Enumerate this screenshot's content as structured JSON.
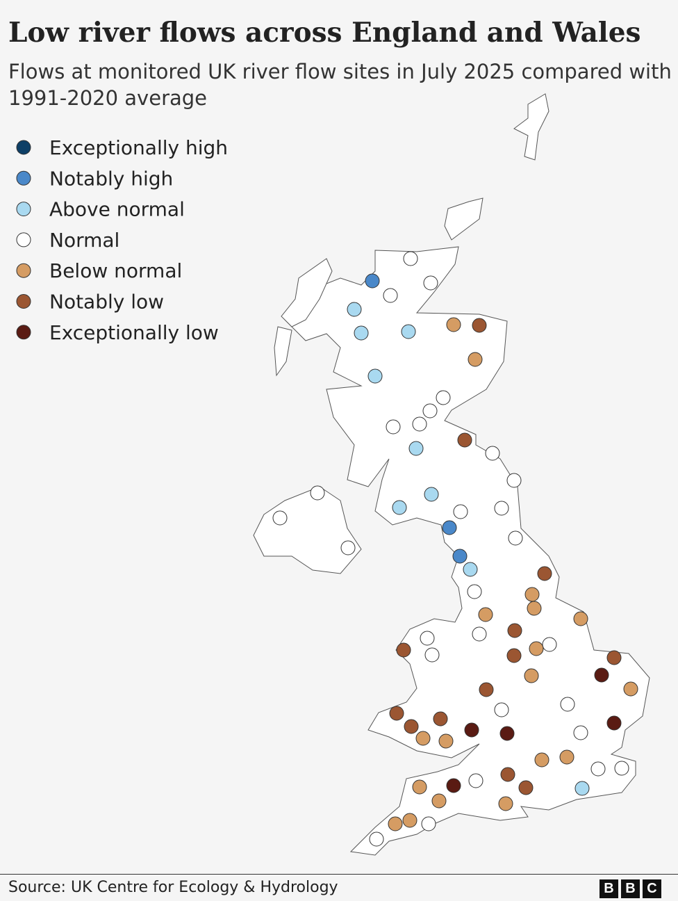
{
  "title": "Low river flows across England and Wales",
  "subtitle": "Flows at monitored UK river flow sites in July 2025 compared with 1991-2020 average",
  "legend": [
    {
      "label": "Exceptionally high",
      "color": "#0e3f66"
    },
    {
      "label": "Notably high",
      "color": "#4a88c9"
    },
    {
      "label": "Above normal",
      "color": "#a9d9f0"
    },
    {
      "label": "Normal",
      "color": "#ffffff"
    },
    {
      "label": "Below normal",
      "color": "#d59c63"
    },
    {
      "label": "Notably low",
      "color": "#9b5632"
    },
    {
      "label": "Exceptionally low",
      "color": "#5a1b13"
    }
  ],
  "source": "Source: UK Centre for Ecology & Hydrology",
  "logo": [
    "B",
    "B",
    "C"
  ]
}
